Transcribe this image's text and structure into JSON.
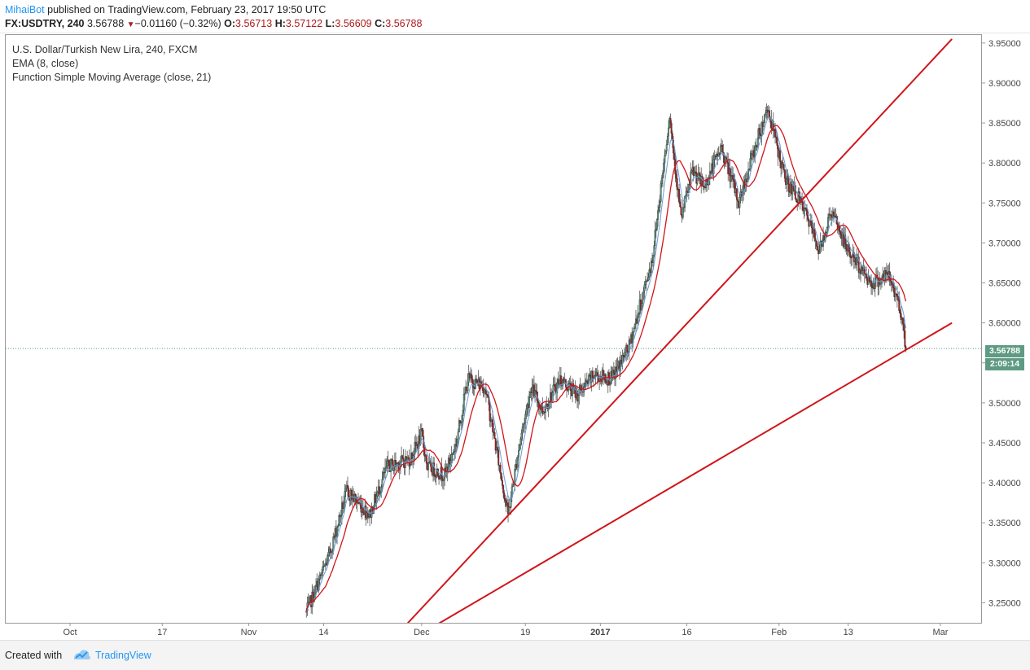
{
  "header": {
    "author": "MihaiBot",
    "published": " published on TradingView.com, February 23, 2017 19:50 UTC",
    "symbol": "FX:USDTRY, 240",
    "last": "3.56788",
    "change": "−0.01160 (−0.32%)",
    "o_label": "O:",
    "o_value": "3.56713",
    "h_label": "H:",
    "h_value": "3.57122",
    "l_label": "L:",
    "l_value": "3.56609",
    "c_label": "C:",
    "c_value": "3.56788"
  },
  "legend": {
    "line1": "U.S. Dollar/Turkish New Lira, 240, FXCM",
    "line2": "EMA (8, close)",
    "line3": "Function Simple Moving Average (close, 21)"
  },
  "badges": {
    "price": "3.56788",
    "countdown": "2:09:14"
  },
  "footer": {
    "created": "Created with",
    "brand": "TradingView"
  },
  "colors": {
    "up": "#5e9e84",
    "down": "#ac1a1a",
    "ema": "#6a9bd8",
    "sma": "#d0151a",
    "trend": "#d0151a",
    "accent": "#2196f3"
  },
  "chart_data": {
    "type": "candlestick",
    "ylim": [
      3.225,
      3.96
    ],
    "y_ticks": [
      "3.95000",
      "3.90000",
      "3.85000",
      "3.80000",
      "3.75000",
      "3.70000",
      "3.65000",
      "3.60000",
      "3.55000",
      "3.50000",
      "3.45000",
      "3.40000",
      "3.35000",
      "3.30000",
      "3.25000"
    ],
    "y_tick_values": [
      3.95,
      3.9,
      3.85,
      3.8,
      3.75,
      3.7,
      3.65,
      3.6,
      3.55,
      3.5,
      3.45,
      3.4,
      3.35,
      3.3,
      3.25
    ],
    "x_labels": [
      "Oct",
      "17",
      "Nov",
      "14",
      "Dec",
      "19",
      "2017",
      "16",
      "Feb",
      "13",
      "Mar"
    ],
    "x_label_bold": [
      false,
      false,
      false,
      false,
      false,
      false,
      true,
      false,
      false,
      false,
      false
    ],
    "current_price": 3.56788,
    "anchors": [
      {
        "date": "2016-11-11",
        "price": 3.238
      },
      {
        "date": "2016-11-15",
        "price": 3.31
      },
      {
        "date": "2016-11-18",
        "price": 3.39
      },
      {
        "date": "2016-11-22",
        "price": 3.36
      },
      {
        "date": "2016-11-25",
        "price": 3.42
      },
      {
        "date": "2016-11-29",
        "price": 3.43
      },
      {
        "date": "2016-12-01",
        "price": 3.46
      },
      {
        "date": "2016-12-02",
        "price": 3.42
      },
      {
        "date": "2016-12-05",
        "price": 3.41
      },
      {
        "date": "2016-12-07",
        "price": 3.45
      },
      {
        "date": "2016-12-09",
        "price": 3.53
      },
      {
        "date": "2016-12-12",
        "price": 3.52
      },
      {
        "date": "2016-12-14",
        "price": 3.44
      },
      {
        "date": "2016-12-16",
        "price": 3.36
      },
      {
        "date": "2016-12-18",
        "price": 3.45
      },
      {
        "date": "2016-12-20",
        "price": 3.52
      },
      {
        "date": "2016-12-22",
        "price": 3.49
      },
      {
        "date": "2016-12-25",
        "price": 3.53
      },
      {
        "date": "2016-12-28",
        "price": 3.51
      },
      {
        "date": "2016-12-31",
        "price": 3.535
      },
      {
        "date": "2017-01-03",
        "price": 3.53
      },
      {
        "date": "2017-01-06",
        "price": 3.57
      },
      {
        "date": "2017-01-10",
        "price": 3.68
      },
      {
        "date": "2017-01-13",
        "price": 3.86
      },
      {
        "date": "2017-01-15",
        "price": 3.73
      },
      {
        "date": "2017-01-17",
        "price": 3.79
      },
      {
        "date": "2017-01-19",
        "price": 3.77
      },
      {
        "date": "2017-01-22",
        "price": 3.82
      },
      {
        "date": "2017-01-25",
        "price": 3.75
      },
      {
        "date": "2017-01-27",
        "price": 3.8
      },
      {
        "date": "2017-01-30",
        "price": 3.87
      },
      {
        "date": "2017-01-31",
        "price": 3.84
      },
      {
        "date": "2017-02-02",
        "price": 3.78
      },
      {
        "date": "2017-02-04",
        "price": 3.76
      },
      {
        "date": "2017-02-06",
        "price": 3.73
      },
      {
        "date": "2017-02-08",
        "price": 3.69
      },
      {
        "date": "2017-02-10",
        "price": 3.74
      },
      {
        "date": "2017-02-13",
        "price": 3.69
      },
      {
        "date": "2017-02-15",
        "price": 3.67
      },
      {
        "date": "2017-02-17",
        "price": 3.65
      },
      {
        "date": "2017-02-20",
        "price": 3.66
      },
      {
        "date": "2017-02-22",
        "price": 3.62
      },
      {
        "date": "2017-02-23",
        "price": 3.568
      }
    ],
    "trendlines": [
      {
        "from": {
          "date": "2016-11-28",
          "price": 3.22
        },
        "to": {
          "date": "2017-03-03",
          "price": 3.955
        }
      },
      {
        "from": {
          "date": "2016-12-03",
          "price": 3.22
        },
        "to": {
          "date": "2017-03-03",
          "price": 3.6
        }
      }
    ]
  }
}
